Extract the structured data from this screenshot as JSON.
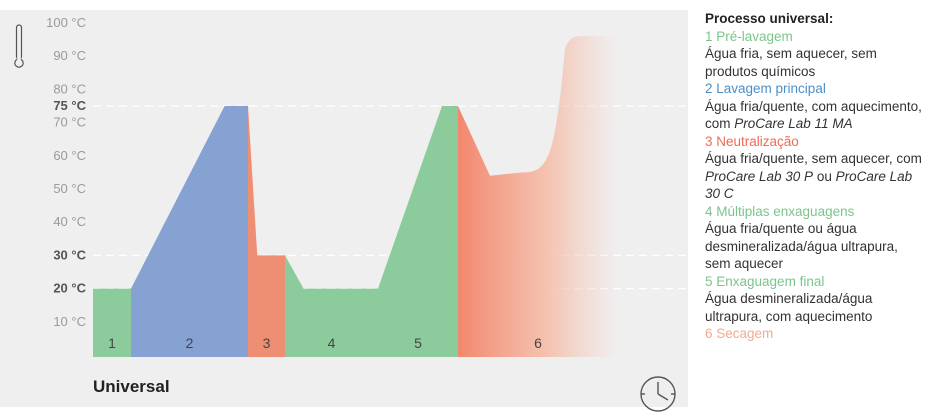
{
  "legend": {
    "title": "Processo universal:",
    "phases": [
      {
        "label": "1 Pré-lavagem",
        "color": "#7cc48b",
        "desc": [
          "Água fria, sem aquecer, sem produtos químicos"
        ]
      },
      {
        "label": "2 Lavagem principal",
        "color": "#4a8fc9",
        "desc": [
          "Água fria/quente, com aquecimento, com ",
          {
            "i": "ProCare Lab 11 MA"
          }
        ]
      },
      {
        "label": "3 Neutralização",
        "color": "#ef6a55",
        "desc": [
          "Água fria/quente, sem aquecer, com ",
          {
            "i": "ProCare Lab 30 P"
          },
          " ou ",
          {
            "i": "ProCare Lab 30 C"
          }
        ]
      },
      {
        "label": "4 Múltiplas enxaguagens",
        "color": "#7cc48b",
        "desc": [
          "Água fria/quente ou água desmineralizada/água ultrapura, sem aquecer"
        ]
      },
      {
        "label": "5 Enxaguagem final",
        "color": "#7cc48b",
        "desc": [
          "Água desmineralizada/água ultrapura, com aquecimento"
        ]
      },
      {
        "label": "6 Secagem",
        "color": "#f4a98f",
        "desc": []
      }
    ]
  },
  "chart_data": {
    "type": "area",
    "title": "Universal",
    "y_unit": "°C",
    "ylim": [
      0,
      100
    ],
    "y_ticks": [
      {
        "value": 10,
        "label": "10 °C",
        "bold": false
      },
      {
        "value": 20,
        "label": "20 °C",
        "bold": true
      },
      {
        "value": 30,
        "label": "30 °C",
        "bold": true
      },
      {
        "value": 40,
        "label": "40 °C",
        "bold": false
      },
      {
        "value": 50,
        "label": "50 °C",
        "bold": false
      },
      {
        "value": 60,
        "label": "60 °C",
        "bold": false
      },
      {
        "value": 70,
        "label": "70 °C",
        "bold": false
      },
      {
        "value": 75,
        "label": "75 °C",
        "bold": true
      },
      {
        "value": 80,
        "label": "80 °C",
        "bold": false
      },
      {
        "value": 90,
        "label": "90 °C",
        "bold": false
      },
      {
        "value": 100,
        "label": "100 °C",
        "bold": false
      }
    ],
    "reference_lines": [
      20,
      30,
      75
    ],
    "x_axis": "time (unlabeled)",
    "phases": [
      {
        "number": "1",
        "name": "Pré-lavagem",
        "color": "#8ccc9c",
        "profile": [
          [
            0,
            20
          ],
          [
            1,
            20
          ]
        ]
      },
      {
        "number": "2",
        "name": "Lavagem principal",
        "color": "#86a2d2",
        "profile": [
          [
            0,
            20
          ],
          [
            0.8,
            75
          ],
          [
            1,
            75
          ]
        ]
      },
      {
        "number": "3",
        "name": "Neutralização",
        "color": "#ee8f73",
        "profile": [
          [
            0,
            75
          ],
          [
            0.25,
            30
          ],
          [
            1,
            30
          ]
        ]
      },
      {
        "number": "4",
        "name": "Múltiplas enxaguagens",
        "color": "#8ccc9c",
        "profile": [
          [
            0,
            30
          ],
          [
            0.2,
            20
          ],
          [
            1,
            20
          ]
        ]
      },
      {
        "number": "5",
        "name": "Enxaguagem final",
        "color": "#8ccc9c",
        "profile": [
          [
            0,
            20
          ],
          [
            0.8,
            75
          ],
          [
            1,
            75
          ]
        ]
      },
      {
        "number": "6",
        "name": "Secagem",
        "color": "#f2876d",
        "profile": [
          [
            0,
            75
          ],
          [
            0.2,
            54
          ],
          [
            0.4,
            55
          ],
          [
            0.7,
            96
          ],
          [
            1,
            96
          ]
        ]
      }
    ]
  }
}
